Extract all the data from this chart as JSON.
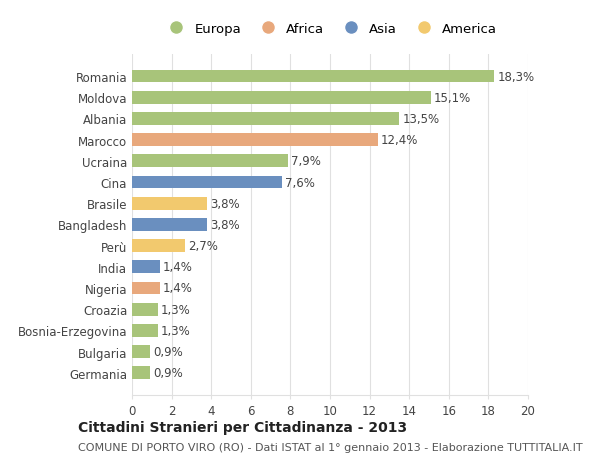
{
  "categories": [
    "Romania",
    "Moldova",
    "Albania",
    "Marocco",
    "Ucraina",
    "Cina",
    "Brasile",
    "Bangladesh",
    "Perù",
    "India",
    "Nigeria",
    "Croazia",
    "Bosnia-Erzegovina",
    "Bulgaria",
    "Germania"
  ],
  "values": [
    18.3,
    15.1,
    13.5,
    12.4,
    7.9,
    7.6,
    3.8,
    3.8,
    2.7,
    1.4,
    1.4,
    1.3,
    1.3,
    0.9,
    0.9
  ],
  "labels": [
    "18,3%",
    "15,1%",
    "13,5%",
    "12,4%",
    "7,9%",
    "7,6%",
    "3,8%",
    "3,8%",
    "2,7%",
    "1,4%",
    "1,4%",
    "1,3%",
    "1,3%",
    "0,9%",
    "0,9%"
  ],
  "continents": [
    "Europa",
    "Europa",
    "Europa",
    "Africa",
    "Europa",
    "Asia",
    "America",
    "Asia",
    "America",
    "Asia",
    "Africa",
    "Europa",
    "Europa",
    "Europa",
    "Europa"
  ],
  "colors": {
    "Europa": "#a8c47a",
    "Africa": "#e8a87c",
    "Asia": "#6a8fbf",
    "America": "#f2c96e"
  },
  "legend_order": [
    "Europa",
    "Africa",
    "Asia",
    "America"
  ],
  "xlim": [
    0,
    20
  ],
  "xticks": [
    0,
    2,
    4,
    6,
    8,
    10,
    12,
    14,
    16,
    18,
    20
  ],
  "title": "Cittadini Stranieri per Cittadinanza - 2013",
  "subtitle": "COMUNE DI PORTO VIRO (RO) - Dati ISTAT al 1° gennaio 2013 - Elaborazione TUTTITALIA.IT",
  "background_color": "#ffffff",
  "grid_color": "#e0e0e0",
  "bar_height": 0.6,
  "label_fontsize": 8.5,
  "tick_fontsize": 8.5,
  "title_fontsize": 10,
  "subtitle_fontsize": 8
}
